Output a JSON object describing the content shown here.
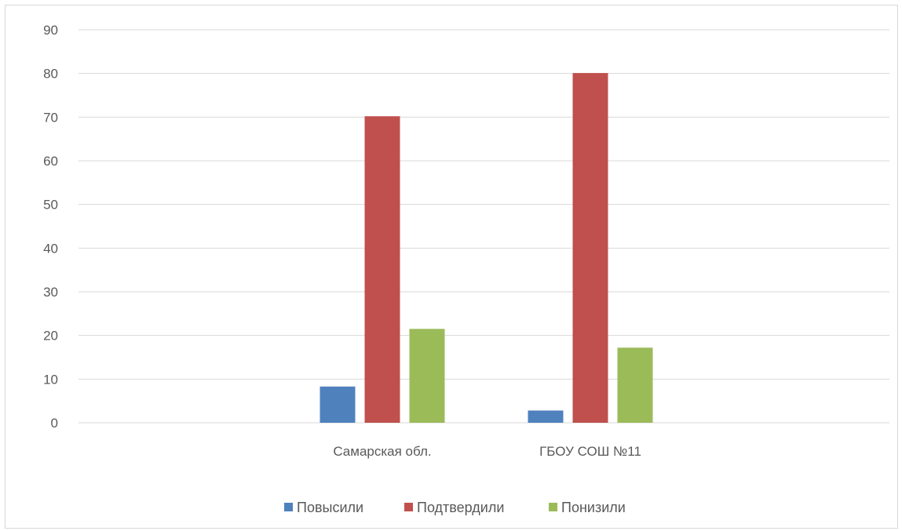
{
  "chart_data": {
    "type": "bar",
    "categories": [
      "Самарская обл.",
      "ГБОУ СОШ №11"
    ],
    "series": [
      {
        "name": "Повысили",
        "values": [
          8.3,
          2.8
        ],
        "color": "#4f81bd"
      },
      {
        "name": "Подтвердили",
        "values": [
          70.2,
          80.1
        ],
        "color": "#c0504d"
      },
      {
        "name": "Понизили",
        "values": [
          21.5,
          17.2
        ],
        "color": "#9bbb59"
      }
    ],
    "yticks": [
      "0",
      "10",
      "20",
      "30",
      "40",
      "50",
      "60",
      "70",
      "80",
      "90"
    ],
    "ylim": [
      0,
      90
    ],
    "grid": true,
    "legend": "bottom",
    "title": "",
    "xlabel": "",
    "ylabel": ""
  }
}
